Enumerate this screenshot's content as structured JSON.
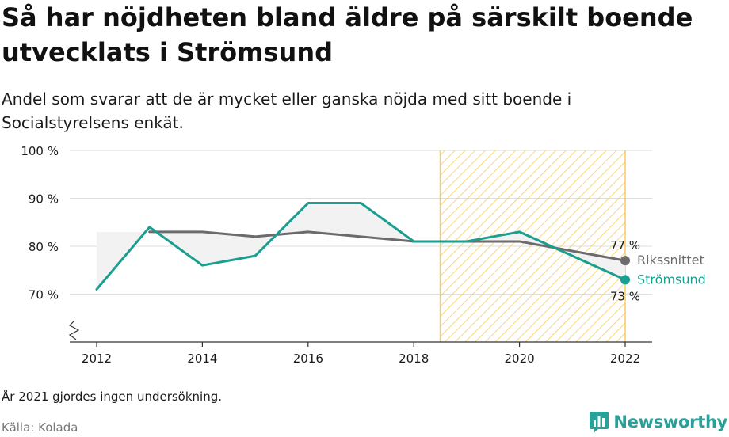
{
  "title": "Så har nöjdheten bland äldre på särskilt boende utvecklats i Strömsund",
  "subtitle": "Andel som svarar att de är mycket eller ganska nöjda med sitt boende i Socialstyrelsens enkät.",
  "note": "År 2021 gjordes ingen undersökning.",
  "source": "Källa: Kolada",
  "brand": {
    "name": "Newsworthy",
    "logo_icon": "bar-chart-speech-bubble-icon"
  },
  "colors": {
    "stromsund": "#1a9e8f",
    "riket": "#6d6a6e",
    "hatch": "#f5cc5e",
    "grid": "#dddddd",
    "fill": "#f2f2f2"
  },
  "chart_data": {
    "type": "line",
    "x_ticks": [
      2012,
      2014,
      2016,
      2018,
      2020,
      2022
    ],
    "x_tick_labels": [
      "2012",
      "2014",
      "2016",
      "2018",
      "2020",
      "2022"
    ],
    "y_ticks": [
      70,
      80,
      90,
      100
    ],
    "y_tick_labels": [
      "70 %",
      "80 %",
      "90 %",
      "100 %"
    ],
    "xlim": [
      2012,
      2022
    ],
    "ylim": [
      60,
      100
    ],
    "y_axis_break": true,
    "grid": true,
    "highlighted_range": [
      2018.5,
      2022
    ],
    "series": [
      {
        "key": "stromsund",
        "name": "Strömsund",
        "x": [
          2012,
          2013,
          2014,
          2015,
          2016,
          2017,
          2018,
          2019,
          2020,
          2022
        ],
        "values": [
          71,
          84,
          76,
          78,
          89,
          89,
          81,
          81,
          83,
          73
        ],
        "end_label": "73 %"
      },
      {
        "key": "riket",
        "name": "Rikssnittet",
        "x": [
          2013,
          2014,
          2015,
          2016,
          2018,
          2019,
          2020,
          2022
        ],
        "values": [
          83,
          83,
          82,
          83,
          81,
          81,
          81,
          77
        ],
        "end_label": "77 %"
      }
    ]
  }
}
